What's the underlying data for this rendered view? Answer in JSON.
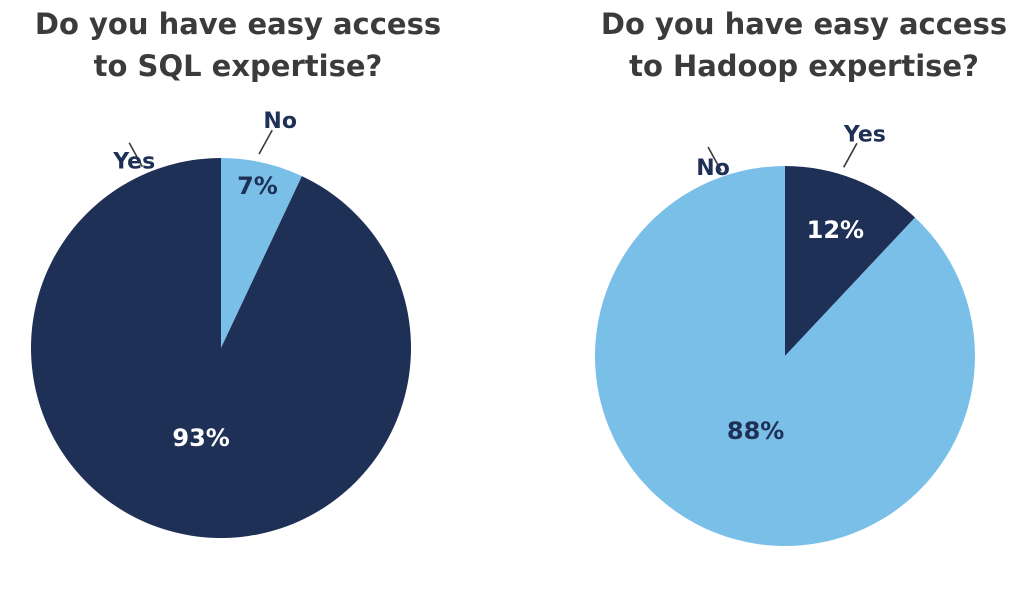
{
  "colors": {
    "dark": "#1f3056",
    "light": "#79bfe8",
    "title": "#3b3b3b"
  },
  "chart_data": [
    {
      "type": "pie",
      "title": [
        "Do you have easy access",
        "to SQL expertise?"
      ],
      "slices": [
        {
          "label": "No",
          "value": 7,
          "value_label": "7%",
          "color": "#79bfe8",
          "text_color": "#1f3056"
        },
        {
          "label": "Yes",
          "value": 93,
          "value_label": "93%",
          "color": "#1f3056",
          "text_color": "#ffffff"
        }
      ]
    },
    {
      "type": "pie",
      "title": [
        "Do you have easy access",
        "to Hadoop expertise?"
      ],
      "slices": [
        {
          "label": "Yes",
          "value": 12,
          "value_label": "12%",
          "color": "#1f3056",
          "text_color": "#ffffff"
        },
        {
          "label": "No",
          "value": 88,
          "value_label": "88%",
          "color": "#79bfe8",
          "text_color": "#1f3056"
        }
      ]
    }
  ]
}
